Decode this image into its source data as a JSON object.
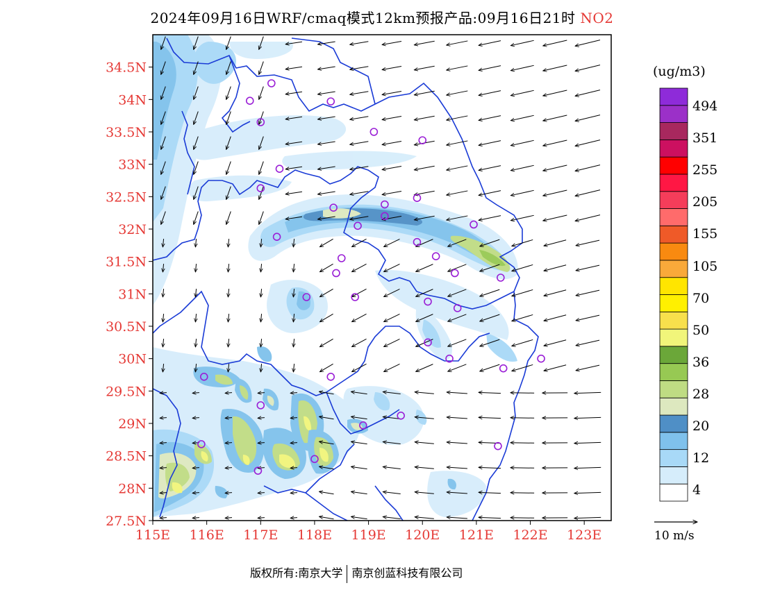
{
  "title": {
    "main": "2024年09月16日WRF/cmaq模式12km预报产品:09月16日21时",
    "species": "NO2"
  },
  "axes": {
    "lat_labels": [
      "34.5N",
      "34N",
      "33.5N",
      "33N",
      "32.5N",
      "32N",
      "31.5N",
      "31N",
      "30.5N",
      "30N",
      "29.5N",
      "29N",
      "28.5N",
      "28N",
      "27.5N"
    ],
    "lat_values": [
      34.5,
      34,
      33.5,
      33,
      32.5,
      32,
      31.5,
      31,
      30.5,
      30,
      29.5,
      29,
      28.5,
      28,
      27.5
    ],
    "lon_labels": [
      "115E",
      "116E",
      "117E",
      "118E",
      "119E",
      "120E",
      "121E",
      "122E",
      "123E"
    ],
    "lon_values": [
      115,
      116,
      117,
      118,
      119,
      120,
      121,
      122,
      123
    ],
    "lon_range": [
      115,
      123.5
    ],
    "lat_range": [
      27.5,
      35
    ]
  },
  "colorbar": {
    "unit": "(ug/m3)",
    "labels": [
      "494",
      "351",
      "255",
      "205",
      "155",
      "105",
      "70",
      "50",
      "36",
      "28",
      "20",
      "12",
      "4"
    ],
    "colors": [
      "#ffffff",
      "#d6edfb",
      "#a8d9f7",
      "#7fc1ec",
      "#4f8fc6",
      "#dde8bf",
      "#bfdc83",
      "#97c953",
      "#6ba739",
      "#f1f57a",
      "#f8e04c",
      "#fff000",
      "#ffe500",
      "#f9a93a",
      "#f98a10",
      "#ef5a28",
      "#ff6b6b",
      "#f53d5a",
      "#ff1744",
      "#ff0000",
      "#cc1060",
      "#a8285e",
      "#9b30c8",
      "#8e2bd9"
    ]
  },
  "ref_vector": {
    "label": "10 m/s"
  },
  "footer": {
    "left": "版权所有:南京大学",
    "right": "南京创蓝科技有限公司"
  },
  "stations": [
    [
      117.2,
      34.25
    ],
    [
      116.8,
      33.98
    ],
    [
      118.3,
      33.97
    ],
    [
      117.0,
      33.65
    ],
    [
      119.1,
      33.5
    ],
    [
      120.0,
      33.37
    ],
    [
      117.35,
      32.93
    ],
    [
      117.0,
      32.63
    ],
    [
      119.9,
      32.48
    ],
    [
      119.3,
      32.38
    ],
    [
      118.35,
      32.33
    ],
    [
      119.3,
      32.2
    ],
    [
      118.8,
      32.05
    ],
    [
      120.95,
      32.07
    ],
    [
      117.3,
      31.88
    ],
    [
      119.9,
      31.8
    ],
    [
      120.25,
      31.58
    ],
    [
      118.5,
      31.55
    ],
    [
      118.4,
      31.32
    ],
    [
      120.6,
      31.32
    ],
    [
      121.45,
      31.25
    ],
    [
      118.75,
      30.95
    ],
    [
      117.85,
      30.95
    ],
    [
      120.1,
      30.88
    ],
    [
      120.65,
      30.78
    ],
    [
      120.1,
      30.25
    ],
    [
      120.5,
      30.0
    ],
    [
      121.5,
      29.85
    ],
    [
      122.2,
      30.0
    ],
    [
      115.95,
      29.72
    ],
    [
      118.3,
      29.72
    ],
    [
      117.0,
      29.28
    ],
    [
      119.6,
      29.12
    ],
    [
      118.9,
      28.97
    ],
    [
      115.9,
      28.68
    ],
    [
      121.4,
      28.65
    ],
    [
      118.0,
      28.45
    ],
    [
      116.95,
      28.27
    ]
  ]
}
